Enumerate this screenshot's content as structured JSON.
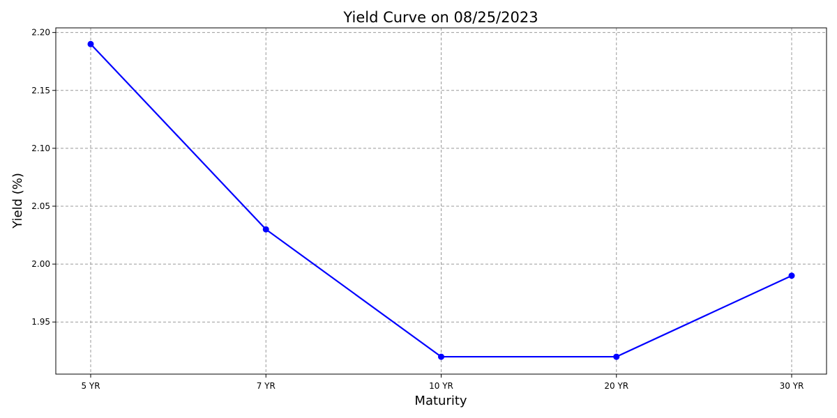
{
  "chart_data": {
    "type": "line",
    "title": "Yield Curve on 08/25/2023",
    "xlabel": "Maturity",
    "ylabel": "Yield (%)",
    "categories": [
      "5 YR",
      "7 YR",
      "10 YR",
      "20 YR",
      "30 YR"
    ],
    "series": [
      {
        "values": [
          2.19,
          2.03,
          1.92,
          1.92,
          1.99
        ],
        "color": "#0000ff",
        "marker": "circle"
      }
    ],
    "ylim": [
      1.905,
      2.204
    ],
    "yticks": [
      1.95,
      2.0,
      2.05,
      2.1,
      2.15,
      2.2
    ],
    "ytick_labels": [
      "1.95",
      "2.00",
      "2.05",
      "2.10",
      "2.15",
      "2.20"
    ],
    "grid": true,
    "grid_color": "#999999"
  }
}
